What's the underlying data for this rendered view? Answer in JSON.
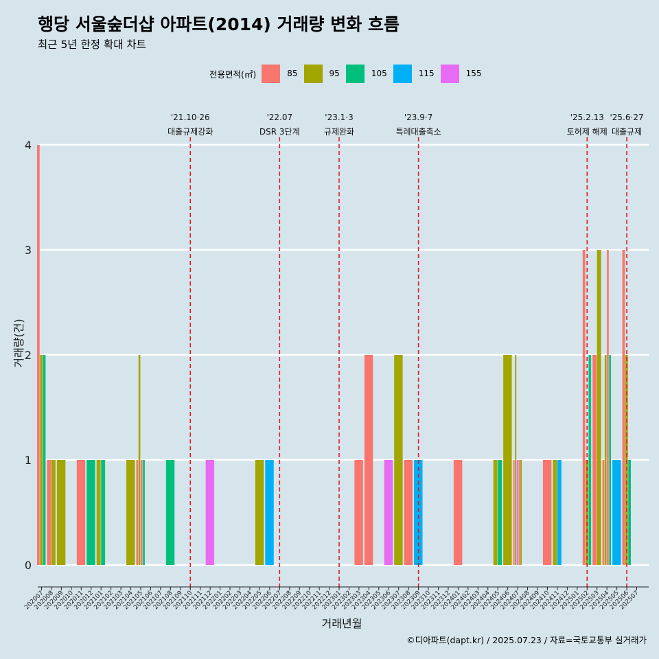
{
  "header": {
    "title": "행당 서울숲더샵 아파트(2014) 거래량 변화 흐름",
    "subtitle": "최근 5년 한정 확대 차트"
  },
  "legend": {
    "title": "전용면적(㎡)",
    "placement": "top",
    "items": [
      {
        "label": "85",
        "color": "#f8766d"
      },
      {
        "label": "95",
        "color": "#a3a500"
      },
      {
        "label": "105",
        "color": "#00bf7d"
      },
      {
        "label": "115",
        "color": "#00b0f6"
      },
      {
        "label": "155",
        "color": "#e76bf3"
      }
    ]
  },
  "footer": {
    "caption": "©디아파트(dapt.kr) / 2025.07.23 / 자료=국토교통부 실거래가"
  },
  "chart_data": {
    "type": "bar",
    "bar_mode": "dodge",
    "xlabel": "거래년월",
    "ylabel": "거래량(건)",
    "ylim": [
      0,
      4
    ],
    "yticks": [
      0,
      1,
      2,
      3,
      4
    ],
    "grid": "horizontal",
    "background": "#d6e4ec",
    "categories": [
      "202007",
      "202008",
      "202009",
      "202010",
      "202011",
      "202012",
      "202101",
      "202102",
      "202103",
      "202104",
      "202105",
      "202106",
      "202107",
      "202108",
      "202109",
      "202110",
      "202111",
      "202112",
      "202201",
      "202202",
      "202203",
      "202204",
      "202205",
      "202206",
      "202207",
      "202208",
      "202209",
      "202210",
      "202211",
      "202212",
      "202301",
      "202302",
      "202303",
      "202304",
      "202305",
      "202306",
      "202307",
      "202308",
      "202309",
      "202310",
      "202311",
      "202312",
      "202401",
      "202402",
      "202403",
      "202404",
      "202405",
      "202406",
      "202407",
      "202408",
      "202409",
      "202410",
      "202411",
      "202412",
      "202501",
      "202502",
      "202503",
      "202504",
      "202505",
      "202506",
      "202507"
    ],
    "series_names": [
      "85",
      "95",
      "105",
      "115",
      "155"
    ],
    "series_colors": [
      "#f8766d",
      "#a3a500",
      "#00bf7d",
      "#00b0f6",
      "#e76bf3"
    ],
    "bars": [
      {
        "month": "202007",
        "groups": [
          [
            "85",
            4
          ],
          [
            "95",
            2
          ],
          [
            "105",
            2
          ]
        ]
      },
      {
        "month": "202008",
        "groups": [
          [
            "85",
            1
          ],
          [
            "95",
            1
          ]
        ]
      },
      {
        "month": "202009",
        "groups": [
          [
            "95",
            1
          ]
        ]
      },
      {
        "month": "202011",
        "groups": [
          [
            "85",
            1
          ]
        ]
      },
      {
        "month": "202012",
        "groups": [
          [
            "105",
            1
          ]
        ]
      },
      {
        "month": "202101",
        "groups": [
          [
            "95",
            1
          ],
          [
            "105",
            1
          ]
        ]
      },
      {
        "month": "202104",
        "groups": [
          [
            "95",
            1
          ]
        ]
      },
      {
        "month": "202105",
        "groups": [
          [
            "85",
            1
          ],
          [
            "95",
            2
          ],
          [
            "85",
            1
          ],
          [
            "105",
            1
          ]
        ]
      },
      {
        "month": "202108",
        "groups": [
          [
            "105",
            1
          ]
        ]
      },
      {
        "month": "202112",
        "groups": [
          [
            "155",
            1
          ]
        ]
      },
      {
        "month": "202205",
        "groups": [
          [
            "95",
            1
          ]
        ]
      },
      {
        "month": "202206",
        "groups": [
          [
            "115",
            1
          ]
        ]
      },
      {
        "month": "202303",
        "groups": [
          [
            "85",
            1
          ]
        ]
      },
      {
        "month": "202304",
        "groups": [
          [
            "85",
            2
          ]
        ]
      },
      {
        "month": "202306",
        "groups": [
          [
            "155",
            1
          ]
        ]
      },
      {
        "month": "202307",
        "groups": [
          [
            "95",
            2
          ]
        ]
      },
      {
        "month": "202308",
        "groups": [
          [
            "85",
            1
          ]
        ]
      },
      {
        "month": "202309",
        "groups": [
          [
            "115",
            1
          ]
        ]
      },
      {
        "month": "202401",
        "groups": [
          [
            "85",
            1
          ]
        ]
      },
      {
        "month": "202405",
        "groups": [
          [
            "95",
            1
          ],
          [
            "105",
            1
          ]
        ]
      },
      {
        "month": "202406",
        "groups": [
          [
            "95",
            2
          ]
        ]
      },
      {
        "month": "202407",
        "groups": [
          [
            "85",
            1
          ],
          [
            "95",
            2
          ],
          [
            "155",
            1
          ],
          [
            "85",
            1
          ],
          [
            "95",
            1
          ]
        ]
      },
      {
        "month": "202410",
        "groups": [
          [
            "85",
            1
          ]
        ]
      },
      {
        "month": "202411",
        "groups": [
          [
            "95",
            1
          ],
          [
            "115",
            1
          ]
        ]
      },
      {
        "month": "202502",
        "groups": [
          [
            "85",
            3
          ],
          [
            "95",
            1
          ],
          [
            "105",
            2
          ]
        ]
      },
      {
        "month": "202503",
        "groups": [
          [
            "85",
            2
          ],
          [
            "95",
            3
          ]
        ]
      },
      {
        "month": "202504",
        "groups": [
          [
            "85",
            1
          ],
          [
            "95",
            2
          ],
          [
            "85",
            3
          ],
          [
            "105",
            2
          ]
        ]
      },
      {
        "month": "202505",
        "groups": [
          [
            "115",
            1
          ]
        ]
      },
      {
        "month": "202506",
        "groups": [
          [
            "85",
            3
          ],
          [
            "95",
            2
          ],
          [
            "105",
            1
          ]
        ]
      }
    ],
    "events": [
      {
        "date_label": "'21.10·26",
        "name": "대출규제강화",
        "month": "202110"
      },
      {
        "date_label": "'22.07",
        "name": "DSR 3단계",
        "month": "202207"
      },
      {
        "date_label": "'23.1·3",
        "name": "규제완화",
        "month": "202301"
      },
      {
        "date_label": "'23.9·7",
        "name": "특례대출축소",
        "month": "202309"
      },
      {
        "date_label": "'25.2.13",
        "name": "토허제 해제",
        "month": "202502"
      },
      {
        "date_label": "'25.6·27",
        "name": "대출규제",
        "month": "202506"
      }
    ],
    "event_line_color": "#e41a1c"
  }
}
